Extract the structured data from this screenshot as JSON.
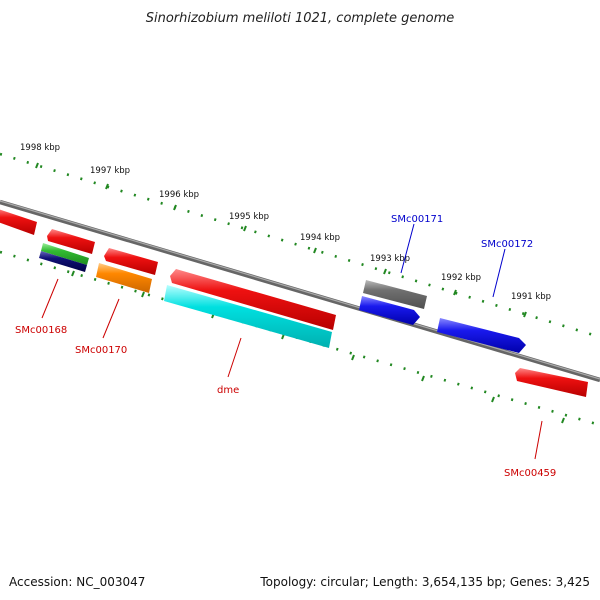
{
  "title": "Sinorhizobium meliloti 1021, complete genome",
  "accession": "Accession: NC_003047",
  "summary": "Topology: circular; Length: 3,654,135 bp; Genes: 3,425",
  "ticks": [
    "1998 kbp",
    "1997 kbp",
    "1996 kbp",
    "1995 kbp",
    "1994 kbp",
    "1993 kbp",
    "1992 kbp",
    "1991 kbp"
  ],
  "labels": {
    "smc00168": "SMc00168",
    "smc00170": "SMc00170",
    "dme": "dme",
    "smc00459": "SMc00459",
    "smc00171": "SMc00171",
    "smc00172": "SMc00172"
  },
  "colors": {
    "red": "#ee1111",
    "green": "#33bb33",
    "navy": "#111177",
    "orange": "#ff8800",
    "cyan": "#00e0e0",
    "grey": "#707070",
    "blue": "#1a1aee",
    "label_red": "#cc0000",
    "label_blue": "#0000cc",
    "tick_green": "#228822"
  }
}
